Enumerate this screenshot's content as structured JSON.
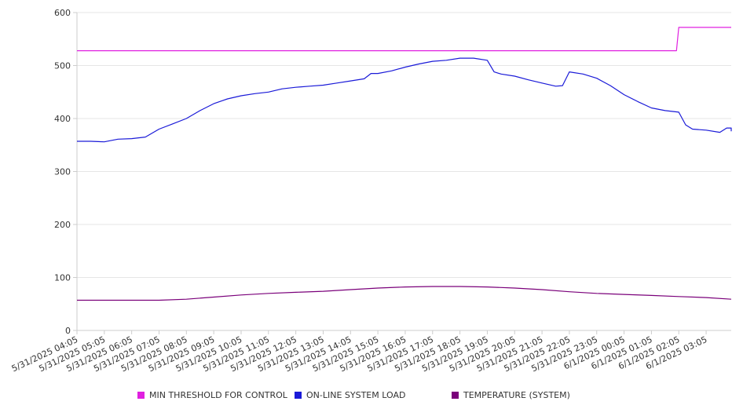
{
  "chart_data": {
    "type": "line",
    "x": [
      "5/31/2025 04:05",
      "5/31/2025 05:05",
      "5/31/2025 06:05",
      "5/31/2025 07:05",
      "5/31/2025 08:05",
      "5/31/2025 09:05",
      "5/31/2025 10:05",
      "5/31/2025 11:05",
      "5/31/2025 12:05",
      "5/31/2025 13:05",
      "5/31/2025 14:05",
      "5/31/2025 15:05",
      "5/31/2025 16:05",
      "5/31/2025 17:05",
      "5/31/2025 18:05",
      "5/31/2025 19:05",
      "5/31/2025 20:05",
      "5/31/2025 21:05",
      "5/31/2025 22:05",
      "5/31/2025 23:05",
      "6/1/2025 00:05",
      "6/1/2025 01:05",
      "6/1/2025 02:05",
      "6/1/2025 03:05"
    ],
    "x_end": "6/1/2025 04:00",
    "ylim": [
      0,
      600
    ],
    "yticks": [
      0,
      100,
      200,
      300,
      400,
      500,
      600
    ],
    "grid": true,
    "legend_position": "bottom",
    "series": [
      {
        "name": "MIN THRESHOLD FOR CONTROL",
        "color": "#e020e0",
        "points": [
          [
            "5/31/2025 04:05",
            528
          ],
          [
            "6/1/2025 02:00",
            528
          ],
          [
            "6/1/2025 02:05",
            572
          ],
          [
            "6/1/2025 04:00",
            572
          ]
        ]
      },
      {
        "name": "ON-LINE SYSTEM LOAD",
        "color": "#1a1ad8",
        "points": [
          [
            "5/31/2025 04:05",
            357
          ],
          [
            "5/31/2025 04:35",
            357
          ],
          [
            "5/31/2025 05:05",
            356
          ],
          [
            "5/31/2025 05:35",
            361
          ],
          [
            "5/31/2025 06:05",
            362
          ],
          [
            "5/31/2025 06:35",
            365
          ],
          [
            "5/31/2025 07:05",
            380
          ],
          [
            "5/31/2025 07:35",
            390
          ],
          [
            "5/31/2025 08:05",
            400
          ],
          [
            "5/31/2025 08:35",
            415
          ],
          [
            "5/31/2025 09:05",
            428
          ],
          [
            "5/31/2025 09:35",
            437
          ],
          [
            "5/31/2025 10:05",
            443
          ],
          [
            "5/31/2025 10:35",
            447
          ],
          [
            "5/31/2025 11:05",
            450
          ],
          [
            "5/31/2025 11:35",
            456
          ],
          [
            "5/31/2025 12:05",
            459
          ],
          [
            "5/31/2025 12:35",
            461
          ],
          [
            "5/31/2025 13:05",
            463
          ],
          [
            "5/31/2025 13:35",
            467
          ],
          [
            "5/31/2025 14:05",
            471
          ],
          [
            "5/31/2025 14:35",
            475
          ],
          [
            "5/31/2025 14:50",
            485
          ],
          [
            "5/31/2025 15:05",
            485
          ],
          [
            "5/31/2025 15:35",
            490
          ],
          [
            "5/31/2025 16:05",
            497
          ],
          [
            "5/31/2025 16:35",
            503
          ],
          [
            "5/31/2025 17:05",
            508
          ],
          [
            "5/31/2025 17:35",
            510
          ],
          [
            "5/31/2025 18:05",
            514
          ],
          [
            "5/31/2025 18:35",
            514
          ],
          [
            "5/31/2025 19:05",
            510
          ],
          [
            "5/31/2025 19:20",
            488
          ],
          [
            "5/31/2025 19:35",
            484
          ],
          [
            "5/31/2025 20:05",
            480
          ],
          [
            "5/31/2025 20:35",
            473
          ],
          [
            "5/31/2025 21:05",
            467
          ],
          [
            "5/31/2025 21:35",
            461
          ],
          [
            "5/31/2025 21:50",
            462
          ],
          [
            "5/31/2025 22:05",
            488
          ],
          [
            "5/31/2025 22:35",
            484
          ],
          [
            "5/31/2025 23:05",
            476
          ],
          [
            "5/31/2025 23:35",
            462
          ],
          [
            "6/1/2025 00:05",
            445
          ],
          [
            "6/1/2025 00:35",
            432
          ],
          [
            "6/1/2025 01:05",
            420
          ],
          [
            "6/1/2025 01:35",
            415
          ],
          [
            "6/1/2025 02:05",
            412
          ],
          [
            "6/1/2025 02:20",
            388
          ],
          [
            "6/1/2025 02:35",
            380
          ],
          [
            "6/1/2025 03:05",
            378
          ],
          [
            "6/1/2025 03:35",
            374
          ],
          [
            "6/1/2025 03:50",
            382
          ],
          [
            "6/1/2025 04:00",
            382
          ],
          [
            "6/1/2025 04:05",
            376
          ]
        ]
      },
      {
        "name": "TEMPERATURE (SYSTEM)",
        "color": "#7a007a",
        "points": [
          [
            "5/31/2025 04:05",
            57
          ],
          [
            "5/31/2025 07:05",
            57
          ],
          [
            "5/31/2025 08:05",
            59
          ],
          [
            "5/31/2025 09:05",
            63
          ],
          [
            "5/31/2025 10:05",
            67
          ],
          [
            "5/31/2025 11:05",
            70
          ],
          [
            "5/31/2025 12:05",
            72
          ],
          [
            "5/31/2025 13:05",
            74
          ],
          [
            "5/31/2025 14:05",
            77
          ],
          [
            "5/31/2025 15:05",
            80
          ],
          [
            "5/31/2025 16:05",
            82
          ],
          [
            "5/31/2025 17:05",
            83
          ],
          [
            "5/31/2025 18:05",
            83
          ],
          [
            "5/31/2025 19:05",
            82
          ],
          [
            "5/31/2025 20:05",
            80
          ],
          [
            "5/31/2025 21:05",
            77
          ],
          [
            "5/31/2025 22:05",
            73
          ],
          [
            "5/31/2025 23:05",
            70
          ],
          [
            "6/1/2025 00:05",
            68
          ],
          [
            "6/1/2025 01:05",
            66
          ],
          [
            "6/1/2025 02:05",
            64
          ],
          [
            "6/1/2025 03:05",
            62
          ],
          [
            "6/1/2025 04:05",
            59
          ]
        ]
      }
    ]
  }
}
